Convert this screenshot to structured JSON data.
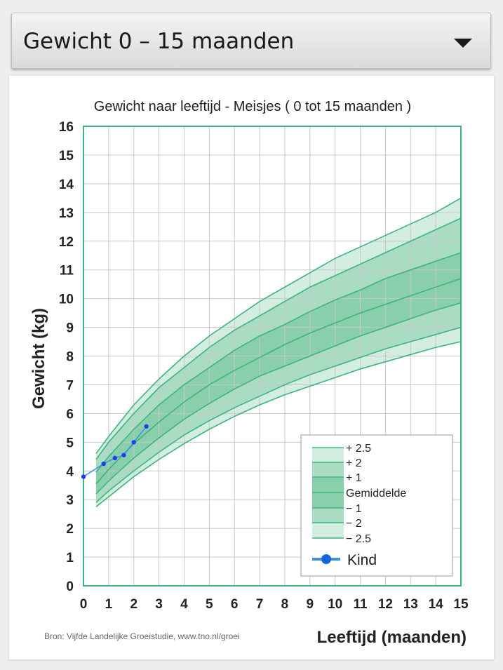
{
  "dropdown": {
    "selected": "Gewicht 0 – 15 maanden",
    "icon": "chevron-down-icon"
  },
  "chart_data": {
    "type": "area",
    "title": "Gewicht naar leeftijd - Meisjes ( 0 tot 15 maanden )",
    "xlabel": "Leeftijd (maanden)",
    "ylabel": "Gewicht (kg)",
    "xlim": [
      0,
      15
    ],
    "ylim": [
      0,
      16
    ],
    "xticks": [
      "0",
      "1",
      "2",
      "3",
      "4",
      "5",
      "6",
      "7",
      "8",
      "9",
      "10",
      "11",
      "12",
      "13",
      "14",
      "15"
    ],
    "yticks": [
      "0",
      "1",
      "2",
      "3",
      "4",
      "5",
      "6",
      "7",
      "8",
      "9",
      "10",
      "11",
      "12",
      "13",
      "14",
      "15",
      "16"
    ],
    "grid": true,
    "legend_position": "bottom-right",
    "source": "Bron: Vijfde Landelijke Groeistudie, www.tno.nl/groei",
    "colors": {
      "outer_band": "#d3ede0",
      "middle_band": "#a9dcc2",
      "inner_band": "#89cfac",
      "line": "#3db57c",
      "child": "#1e3ff0"
    },
    "x": [
      0.5,
      1,
      2,
      3,
      4,
      5,
      6,
      7,
      8,
      9,
      10,
      11,
      12,
      13,
      14,
      15
    ],
    "series": [
      {
        "name": "+ 2.5",
        "values": [
          4.6,
          5.2,
          6.3,
          7.2,
          8.0,
          8.7,
          9.3,
          9.9,
          10.4,
          10.9,
          11.4,
          11.8,
          12.2,
          12.6,
          13.0,
          13.5
        ]
      },
      {
        "name": "+ 2",
        "values": [
          4.4,
          5.0,
          6.0,
          6.9,
          7.6,
          8.3,
          8.9,
          9.4,
          9.9,
          10.4,
          10.8,
          11.2,
          11.6,
          12.0,
          12.4,
          12.8
        ]
      },
      {
        "name": "+ 1",
        "values": [
          3.95,
          4.5,
          5.45,
          6.3,
          7.0,
          7.6,
          8.2,
          8.7,
          9.1,
          9.55,
          9.95,
          10.3,
          10.7,
          11.0,
          11.3,
          11.6
        ]
      },
      {
        "name": "Gemiddelde",
        "values": [
          3.55,
          4.05,
          4.95,
          5.7,
          6.4,
          7.0,
          7.5,
          7.95,
          8.4,
          8.8,
          9.15,
          9.5,
          9.8,
          10.1,
          10.4,
          10.7
        ]
      },
      {
        "name": "− 1",
        "values": [
          3.2,
          3.65,
          4.45,
          5.15,
          5.8,
          6.35,
          6.85,
          7.3,
          7.65,
          8.0,
          8.35,
          8.7,
          9.0,
          9.3,
          9.6,
          9.85
        ]
      },
      {
        "name": "− 2",
        "values": [
          2.9,
          3.3,
          4.0,
          4.65,
          5.25,
          5.75,
          6.2,
          6.6,
          7.0,
          7.35,
          7.65,
          7.95,
          8.25,
          8.5,
          8.75,
          9.0
        ]
      },
      {
        "name": "− 2.5",
        "values": [
          2.75,
          3.1,
          3.8,
          4.4,
          4.95,
          5.45,
          5.9,
          6.3,
          6.65,
          6.95,
          7.25,
          7.55,
          7.8,
          8.05,
          8.3,
          8.5
        ]
      }
    ],
    "child": {
      "name": "Kind",
      "points": [
        [
          0,
          3.8
        ],
        [
          0.8,
          4.25
        ],
        [
          1.25,
          4.45
        ],
        [
          1.6,
          4.55
        ],
        [
          2.0,
          5.0
        ],
        [
          2.5,
          5.55
        ]
      ]
    }
  }
}
